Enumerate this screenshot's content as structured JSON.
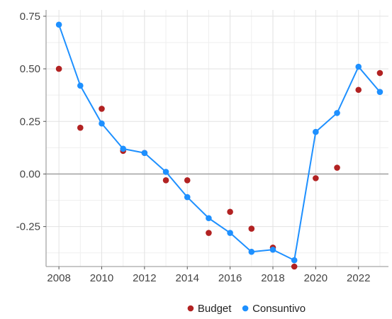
{
  "chart_data": {
    "type": "line",
    "title": "",
    "xlabel": "",
    "ylabel": "",
    "x": [
      2008,
      2009,
      2010,
      2011,
      2012,
      2013,
      2014,
      2015,
      2016,
      2017,
      2018,
      2019,
      2020,
      2021,
      2022,
      2023
    ],
    "xlim": [
      2007.4,
      2023.4
    ],
    "ylim": [
      -0.44,
      0.78
    ],
    "x_ticks": [
      2008,
      2010,
      2012,
      2014,
      2016,
      2018,
      2020,
      2022
    ],
    "x_tick_labels": [
      "2008",
      "2010",
      "2012",
      "2014",
      "2016",
      "2018",
      "2020",
      "2022"
    ],
    "y_ticks": [
      -0.25,
      0,
      0.25,
      0.5,
      0.75
    ],
    "y_tick_labels": [
      "-0.25",
      "0.00",
      "0.25",
      "0.50",
      "0.75"
    ],
    "grid": true,
    "zero_line": true,
    "legend_position": "bottom",
    "series": [
      {
        "name": "Budget",
        "style": "points",
        "color": "#B22222",
        "values": [
          0.5,
          0.22,
          0.31,
          0.11,
          0.1,
          -0.03,
          -0.03,
          -0.28,
          -0.18,
          -0.26,
          -0.35,
          -0.44,
          -0.02,
          0.03,
          0.4,
          0.48
        ]
      },
      {
        "name": "Consuntivo",
        "style": "line+points",
        "color": "#1E90FF",
        "values": [
          0.71,
          0.42,
          0.24,
          0.12,
          0.1,
          0.01,
          -0.11,
          -0.21,
          -0.28,
          -0.37,
          -0.36,
          -0.41,
          0.2,
          0.29,
          0.51,
          0.39
        ]
      }
    ]
  }
}
